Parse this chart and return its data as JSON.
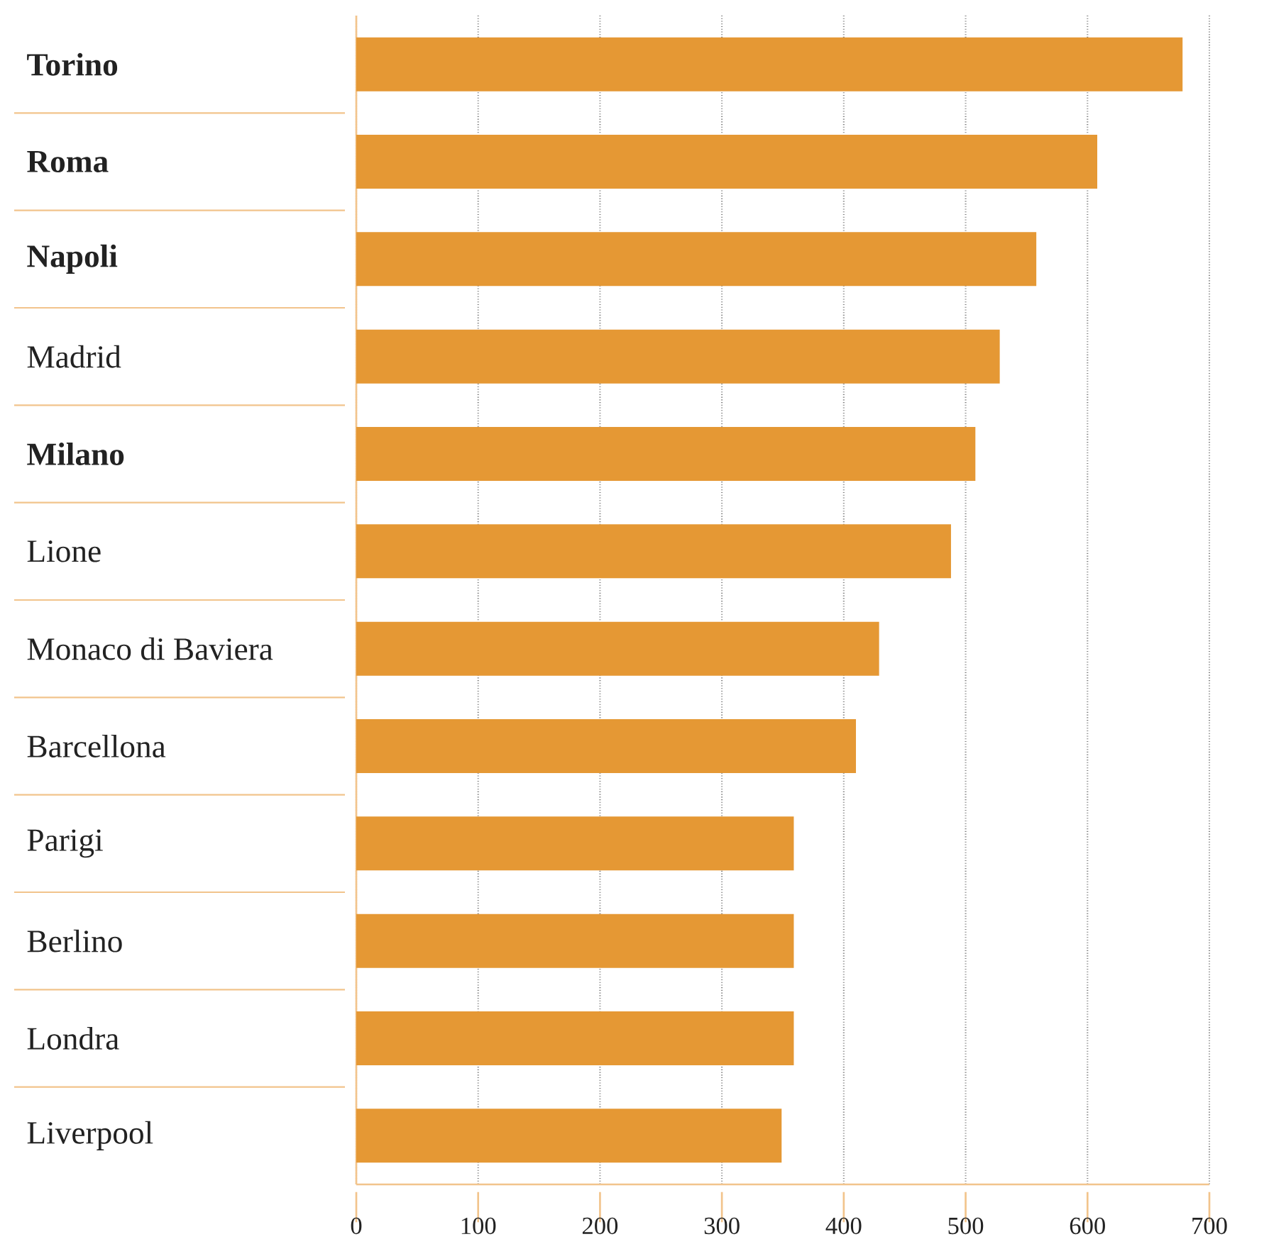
{
  "chart_data": {
    "type": "bar",
    "orientation": "horizontal",
    "categories": [
      "**Torino**",
      "**Roma**",
      "**Napoli**",
      "Madrid",
      "**Milano**",
      "Lione",
      "Monaco di Baviera",
      "Barcellona",
      "Parigi",
      "Berlino",
      "Londra",
      "Liverpool"
    ],
    "values": [
      678,
      608,
      558,
      528,
      508,
      488,
      429,
      410,
      359,
      359,
      359,
      349
    ],
    "color": "#e59834",
    "xlim": [
      0,
      700
    ],
    "xticks": [
      0,
      100,
      200,
      300,
      400,
      500,
      600,
      700
    ],
    "grid": "x"
  }
}
